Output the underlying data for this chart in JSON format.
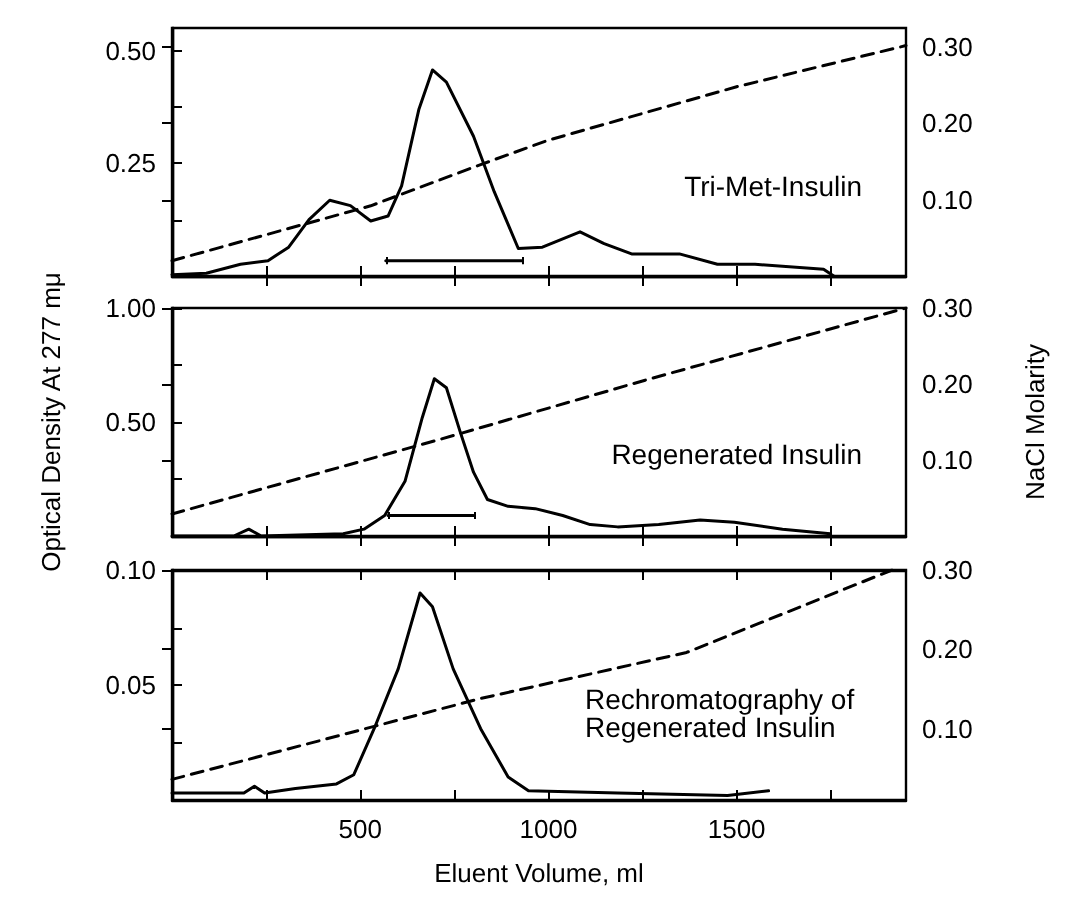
{
  "chart_data": [
    {
      "type": "line",
      "annotations": [
        "Tri-Met-Insulin"
      ],
      "xlim": [
        0,
        1950
      ],
      "xticks": [
        {
          "value": 250,
          "label": null
        },
        {
          "value": 500,
          "label": null
        },
        {
          "value": 750,
          "label": null
        },
        {
          "value": 1000,
          "label": null
        },
        {
          "value": 1250,
          "label": null
        },
        {
          "value": 1500,
          "label": null
        },
        {
          "value": 1750,
          "label": null
        }
      ],
      "ylim": [
        0,
        0.55
      ],
      "yticks": [
        {
          "value": 0.125,
          "label": null
        },
        {
          "value": 0.25,
          "label": "0.25"
        },
        {
          "value": 0.375,
          "label": null
        },
        {
          "value": 0.5,
          "label": "0.50"
        }
      ],
      "y2lim": [
        0,
        0.325
      ],
      "y2ticks": [
        {
          "value": 0.1,
          "label": "0.10"
        },
        {
          "value": 0.2,
          "label": "0.20"
        },
        {
          "value": 0.3,
          "label": "0.30"
        }
      ],
      "tick_labels": "y",
      "grid": false,
      "marker": "none",
      "series": [
        {
          "color": "#000000",
          "line_style": "solid",
          "x": [
            568,
            929
          ],
          "values": [
            0.034,
            0.034
          ],
          "errors": [
            0.008,
            0.008
          ]
        },
        {
          "color": "#000000",
          "line_style": "solid",
          "x": [
            0,
            91,
            182,
            255,
            310,
            364,
            419,
            474,
            528,
            574,
            610,
            656,
            692,
            729,
            801,
            856,
            920,
            984,
            1084,
            1148,
            1221,
            1348,
            1449,
            1549,
            1731,
            1758
          ],
          "values": [
            0.003,
            0.006,
            0.026,
            0.034,
            0.064,
            0.125,
            0.168,
            0.156,
            0.122,
            0.133,
            0.2,
            0.37,
            0.457,
            0.43,
            0.31,
            0.187,
            0.061,
            0.064,
            0.098,
            0.072,
            0.049,
            0.049,
            0.026,
            0.026,
            0.015,
            0
          ]
        },
        {
          "color": "#000000",
          "line_style": "dashed",
          "axis": "y2",
          "x": [
            0,
            528,
            820,
            1000,
            1500,
            1950
          ],
          "values": [
            0.02,
            0.092,
            0.146,
            0.178,
            0.248,
            0.302
          ]
        }
      ]
    },
    {
      "type": "line",
      "ylabel": "Optical Density At 277 mμ",
      "y2label": "NaCl Molarity",
      "annotations": [
        "Regenerated Insulin"
      ],
      "xlim": [
        0,
        1950
      ],
      "xticks": [
        {
          "value": 250,
          "label": null
        },
        {
          "value": 500,
          "label": null
        },
        {
          "value": 750,
          "label": null
        },
        {
          "value": 1000,
          "label": null
        },
        {
          "value": 1250,
          "label": null
        },
        {
          "value": 1500,
          "label": null
        },
        {
          "value": 1750,
          "label": null
        }
      ],
      "ylim": [
        0,
        1.0
      ],
      "yticks": [
        {
          "value": 0.25,
          "label": null
        },
        {
          "value": 0.5,
          "label": "0.50"
        },
        {
          "value": 0.75,
          "label": null
        },
        {
          "value": 1.0,
          "label": "1.00"
        }
      ],
      "y2lim": [
        0,
        0.3
      ],
      "y2ticks": [
        {
          "value": 0.1,
          "label": "0.10"
        },
        {
          "value": 0.2,
          "label": "0.20"
        },
        {
          "value": 0.3,
          "label": "0.30"
        }
      ],
      "tick_labels": "y",
      "grid": false,
      "marker": "none",
      "series": [
        {
          "color": "#000000",
          "line_style": "solid",
          "x": [
            574,
            801
          ],
          "values": [
            0.09,
            0.09
          ],
          "errors": [
            0.015,
            0.015
          ]
        },
        {
          "color": "#000000",
          "line_style": "solid",
          "x": [
            0,
            164,
            204,
            237,
            455,
            510,
            565,
            619,
            665,
            697,
            729,
            765,
            801,
            838,
            893,
            965,
            1038,
            1111,
            1184,
            1293,
            1403,
            1494,
            1622,
            1749
          ],
          "values": [
            0,
            0,
            0.03,
            0,
            0.01,
            0.03,
            0.09,
            0.24,
            0.52,
            0.69,
            0.65,
            0.46,
            0.28,
            0.16,
            0.13,
            0.12,
            0.09,
            0.05,
            0.04,
            0.05,
            0.07,
            0.06,
            0.03,
            0.01
          ]
        },
        {
          "color": "#000000",
          "line_style": "dashed",
          "axis": "y2",
          "x": [
            0,
            711,
            1257,
            1950
          ],
          "values": [
            0.029,
            0.127,
            0.205,
            0.3
          ]
        }
      ]
    },
    {
      "type": "line",
      "xlabel": "Eluent Volume, ml",
      "annotations": [
        "Rechromatography of Regenerated Insulin"
      ],
      "xlim": [
        0,
        1950
      ],
      "xticks": [
        {
          "value": 250,
          "label": null
        },
        {
          "value": 500,
          "label": "500"
        },
        {
          "value": 750,
          "label": null
        },
        {
          "value": 1000,
          "label": "1000"
        },
        {
          "value": 1250,
          "label": null
        },
        {
          "value": 1500,
          "label": "1500"
        },
        {
          "value": 1750,
          "label": null
        }
      ],
      "ylim": [
        0,
        0.1
      ],
      "yticks": [
        {
          "value": 0.025,
          "label": null
        },
        {
          "value": 0.05,
          "label": "0.05"
        },
        {
          "value": 0.075,
          "label": null
        },
        {
          "value": 0.1,
          "label": "0.10"
        }
      ],
      "y2lim": [
        0.01,
        0.3
      ],
      "y2ticks": [
        {
          "value": 0.1,
          "label": "0.10"
        },
        {
          "value": 0.2,
          "label": "0.20"
        },
        {
          "value": 0.3,
          "label": "0.30"
        }
      ],
      "grid": false,
      "marker": "none",
      "series": [
        {
          "color": "#000000",
          "line_style": "solid",
          "x": [
            0,
            191,
            219,
            246,
            328,
            437,
            483,
            537,
            601,
            659,
            692,
            747,
            820,
            893,
            947,
            1184,
            1476,
            1585
          ],
          "values": [
            0.003,
            0.003,
            0.006,
            0.003,
            0.005,
            0.007,
            0.011,
            0.031,
            0.057,
            0.09,
            0.084,
            0.057,
            0.031,
            0.01,
            0.004,
            0.003,
            0.002,
            0.004
          ]
        },
        {
          "color": "#000000",
          "line_style": "dashed",
          "axis": "y2",
          "x": [
            0,
            820,
            1367,
            1913
          ],
          "values": [
            0.036,
            0.138,
            0.196,
            0.3
          ]
        }
      ]
    }
  ]
}
